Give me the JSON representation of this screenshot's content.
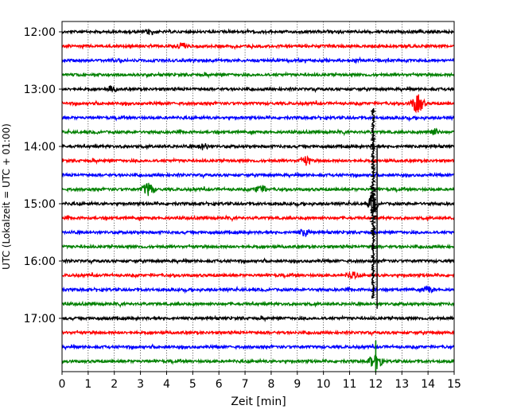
{
  "chart_data": {
    "type": "line",
    "title": "",
    "xlabel": "Zeit  [min]",
    "ylabel": "UTC (Lokalzeit = UTC + 01:00)",
    "xlim": [
      0,
      15
    ],
    "x_ticks": [
      "0",
      "1",
      "2",
      "3",
      "4",
      "5",
      "6",
      "7",
      "8",
      "9",
      "10",
      "11",
      "12",
      "13",
      "14",
      "15"
    ],
    "y_ticks": [
      "12:00",
      "13:00",
      "14:00",
      "15:00",
      "16:00",
      "17:00"
    ],
    "rows_start": "12:00",
    "row_interval_minutes": 15,
    "grid": {
      "x": true,
      "style": "dotted"
    },
    "line_colors": [
      "#000000",
      "#ff0000",
      "#0000ff",
      "#008000"
    ],
    "rows": [
      {
        "start": "12:00",
        "color": "#000000"
      },
      {
        "start": "12:15",
        "color": "#ff0000"
      },
      {
        "start": "12:30",
        "color": "#0000ff"
      },
      {
        "start": "12:45",
        "color": "#008000"
      },
      {
        "start": "13:00",
        "color": "#000000"
      },
      {
        "start": "13:15",
        "color": "#ff0000"
      },
      {
        "start": "13:30",
        "color": "#0000ff"
      },
      {
        "start": "13:45",
        "color": "#008000"
      },
      {
        "start": "14:00",
        "color": "#000000"
      },
      {
        "start": "14:15",
        "color": "#ff0000"
      },
      {
        "start": "14:30",
        "color": "#0000ff"
      },
      {
        "start": "14:45",
        "color": "#008000"
      },
      {
        "start": "15:00",
        "color": "#000000"
      },
      {
        "start": "15:15",
        "color": "#ff0000"
      },
      {
        "start": "15:30",
        "color": "#0000ff"
      },
      {
        "start": "15:45",
        "color": "#008000"
      },
      {
        "start": "16:00",
        "color": "#000000"
      },
      {
        "start": "16:15",
        "color": "#ff0000"
      },
      {
        "start": "16:30",
        "color": "#0000ff"
      },
      {
        "start": "16:45",
        "color": "#008000"
      },
      {
        "start": "17:00",
        "color": "#000000"
      },
      {
        "start": "17:15",
        "color": "#ff0000"
      },
      {
        "start": "17:30",
        "color": "#0000ff"
      },
      {
        "start": "17:45",
        "color": "#008000"
      }
    ],
    "events": [
      {
        "row_start": "12:00",
        "minute": 3.4,
        "amplitude": 1.6
      },
      {
        "row_start": "12:15",
        "minute": 4.6,
        "amplitude": 1.8
      },
      {
        "row_start": "13:00",
        "minute": 1.9,
        "amplitude": 1.5
      },
      {
        "row_start": "13:15",
        "minute": 13.6,
        "amplitude": 4.0
      },
      {
        "row_start": "13:45",
        "minute": 14.2,
        "amplitude": 1.9
      },
      {
        "row_start": "14:00",
        "minute": 5.4,
        "amplitude": 1.6
      },
      {
        "row_start": "14:15",
        "minute": 9.3,
        "amplitude": 2.2
      },
      {
        "row_start": "14:45",
        "minute": 3.3,
        "amplitude": 3.0
      },
      {
        "row_start": "14:45",
        "minute": 7.6,
        "amplitude": 2.2
      },
      {
        "row_start": "15:00",
        "minute": 11.9,
        "amplitude": 12.0
      },
      {
        "row_start": "15:30",
        "minute": 9.3,
        "amplitude": 1.8
      },
      {
        "row_start": "16:15",
        "minute": 11.1,
        "amplitude": 1.8
      },
      {
        "row_start": "16:30",
        "minute": 14.0,
        "amplitude": 1.6
      },
      {
        "row_start": "17:45",
        "minute": 12.0,
        "amplitude": 4.0
      }
    ]
  }
}
